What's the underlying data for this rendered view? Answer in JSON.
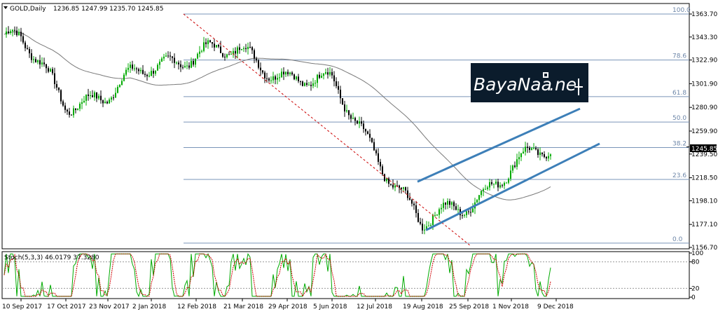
{
  "header": {
    "symbol": "GOLD,Daily",
    "ohlc": "1236.85 1247.99 1235.70 1245.85"
  },
  "watermark": {
    "text_main": "BayaNaa",
    "text_tail": ".ne",
    "bg_color": "#0a1a2a",
    "text_color": "#ffffff"
  },
  "price_badge": "1245.85",
  "stoch_label": "Stoch(5,3,3) 46.0179 37.3280",
  "chart_data": [
    {
      "type": "candlestick",
      "title": "GOLD,Daily",
      "y_ticks": [
        "1363.70",
        "1343.30",
        "1322.90",
        "1301.90",
        "1280.90",
        "1259.90",
        "1239.50",
        "1218.50",
        "1198.10",
        "1177.10",
        "1156.70"
      ],
      "ylim": [
        1156.7,
        1363.7
      ],
      "x_ticks": [
        "10 Sep 2017",
        "17 Oct 2017",
        "23 Nov 2017",
        "2 Jan 2018",
        "12 Feb 2018",
        "21 Mar 2018",
        "29 Apr 2018",
        "5 Jun 2018",
        "12 Jul 2018",
        "19 Aug 2018",
        "25 Sep 2018",
        "1 Nov 2018",
        "9 Dec 2018"
      ],
      "last_price": 1245.85,
      "close_path": [
        [
          "10 Sep 2017",
          1340
        ],
        [
          "17 Oct 2017",
          1287
        ],
        [
          "23 Nov 2017",
          1290
        ],
        [
          "2 Jan 2018",
          1318
        ],
        [
          "12 Feb 2018",
          1330
        ],
        [
          "21 Mar 2018",
          1328
        ],
        [
          "29 Apr 2018",
          1310
        ],
        [
          "5 Jun 2018",
          1300
        ],
        [
          "12 Jul 2018",
          1243
        ],
        [
          "19 Aug 2018",
          1175
        ],
        [
          "25 Sep 2018",
          1197
        ],
        [
          "1 Nov 2018",
          1227
        ],
        [
          "9 Dec 2018",
          1246
        ]
      ],
      "fib_levels": [
        {
          "label": "100.0",
          "value": 1363.7
        },
        {
          "label": "78.6",
          "value": 1322.9
        },
        {
          "label": "61.8",
          "value": 1290.4
        },
        {
          "label": "50.0",
          "value": 1267.9
        },
        {
          "label": "38.2",
          "value": 1245.3
        },
        {
          "label": "23.6",
          "value": 1217.0
        },
        {
          "label": "0.0",
          "value": 1160.5
        }
      ],
      "channel": {
        "upper": [
          [
            "19 Aug 2018",
            1215
          ],
          [
            "9 Dec 2018",
            1270
          ]
        ],
        "lower": [
          [
            "19 Aug 2018",
            1172
          ],
          [
            "9 Dec 2018",
            1230
          ]
        ]
      },
      "moving_average": "gray line, peaks near Jun 2018",
      "colors": {
        "bull": "#00aa00",
        "bear": "#000000",
        "fib": "#7a94b8",
        "channel": "#3d7fb8",
        "trend": "#cc0000",
        "ma": "#7a7a7a"
      }
    },
    {
      "type": "line",
      "title": "Stoch(5,3,3) 46.0179 37.3280",
      "y_ticks": [
        "100",
        "80",
        "20",
        "0"
      ],
      "ylim": [
        0,
        100
      ],
      "levels": [
        80,
        20
      ],
      "series": [
        {
          "name": "%K",
          "value": 46.0179,
          "color": "#00aa00"
        },
        {
          "name": "%D",
          "value": 37.328,
          "color": "#cc0000"
        }
      ]
    }
  ]
}
